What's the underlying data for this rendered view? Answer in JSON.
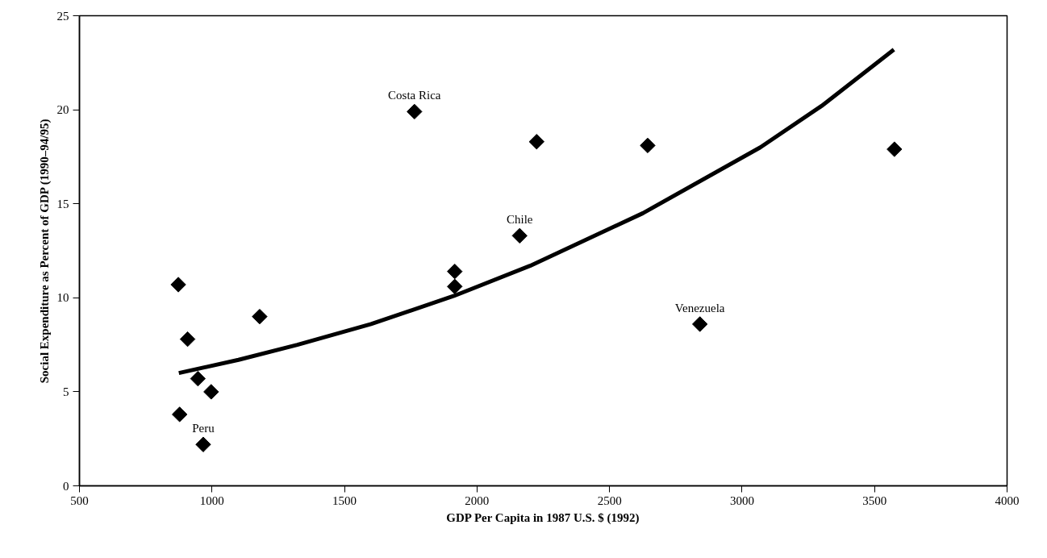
{
  "chart_data": {
    "type": "scatter",
    "xlabel": "GDP Per Capita in 1987 U.S. $ (1992)",
    "ylabel": "Social Expenditure as Percent of GDP (1990–94/95)",
    "xlim": [
      500,
      4000
    ],
    "xticks": [
      500,
      1000,
      1500,
      2000,
      2500,
      3000,
      3500,
      4000
    ],
    "ylim": [
      0,
      25
    ],
    "yticks": [
      0,
      5,
      10,
      15,
      20,
      25
    ],
    "grid": false,
    "series": [
      {
        "marker": "diamond",
        "color": "#000000",
        "x": [
          873,
          908,
          947,
          997,
          878,
          967,
          1180,
          1764,
          1916,
          1916,
          2225,
          2644,
          3575,
          2161,
          2841
        ],
        "values": [
          10.7,
          7.8,
          5.7,
          5.0,
          3.8,
          2.2,
          9.0,
          19.9,
          11.4,
          10.6,
          18.3,
          18.1,
          17.9,
          13.3,
          8.6
        ]
      },
      {
        "type": "line",
        "color": "#000000",
        "line_style": "solid",
        "x": [
          875,
          1100,
          1322,
          1600,
          1913,
          2200,
          2626,
          3069,
          3300,
          3573
        ],
        "values": [
          6.0,
          6.7,
          7.5,
          8.6,
          10.1,
          11.7,
          14.5,
          18.0,
          20.2,
          23.2
        ]
      }
    ],
    "annotations": [
      {
        "text": "Costa Rica",
        "x": 1764,
        "y": 19.9
      },
      {
        "text": "Chile",
        "x": 2161,
        "y": 13.3
      },
      {
        "text": "Venezuela",
        "x": 2841,
        "y": 8.6
      },
      {
        "text": "Peru",
        "x": 967,
        "y": 2.2
      }
    ]
  }
}
